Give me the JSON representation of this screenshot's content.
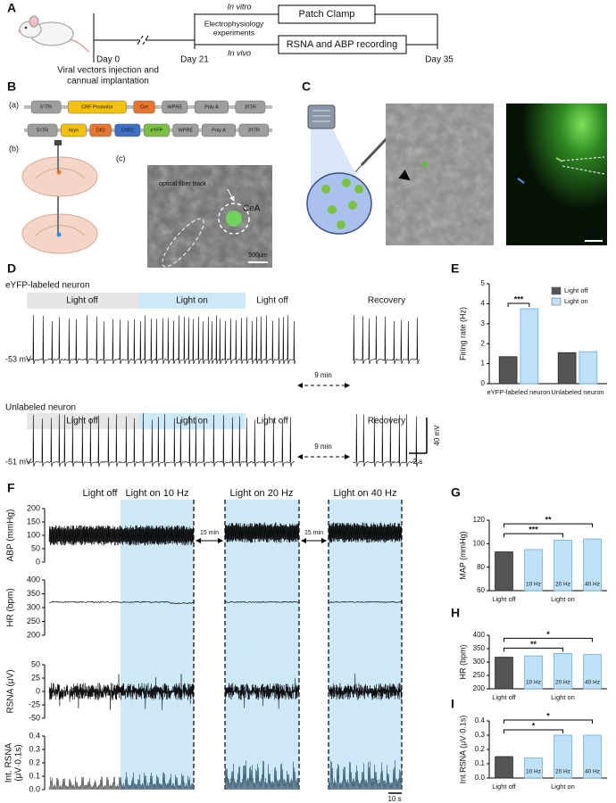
{
  "figure": {
    "panel_labels": [
      "A",
      "B",
      "C",
      "D",
      "E",
      "F",
      "G",
      "H",
      "I"
    ],
    "panel_a": {
      "day0": "Day 0",
      "day0_note": [
        "Viral vectors injection and",
        "cannual implantation"
      ],
      "day21": "Day 21",
      "day35": "Day 35",
      "in_vitro": "In vitro",
      "in_vivo": "In vivo",
      "experiments": [
        "Electrophysiology",
        "experiments"
      ],
      "patch": "Patch Clamp",
      "rsna": "RSNA and ABP recording"
    },
    "panel_b": {
      "sub_a": "(a)",
      "sub_b": "(b)",
      "sub_c": "(c)",
      "construct_1": [
        {
          "label": "5'ITR",
          "color": "#9e9e9e"
        },
        {
          "label": "CRF Promotor",
          "color": "#f4c20d"
        },
        {
          "label": "Cre",
          "color": "#e8732a"
        },
        {
          "label": "WPRE",
          "color": "#9e9e9e"
        },
        {
          "label": "Poly A",
          "color": "#9e9e9e"
        },
        {
          "label": "3'ITR",
          "color": "#9e9e9e"
        }
      ],
      "construct_2": [
        {
          "label": "5'ITR",
          "color": "#9e9e9e"
        },
        {
          "label": "hsyn",
          "color": "#f4c20d"
        },
        {
          "label": "DIO",
          "color": "#e8732a"
        },
        {
          "label": "ChR2",
          "color": "#3d6fc6"
        },
        {
          "label": "eYFP",
          "color": "#7cc242"
        },
        {
          "label": "WPRE",
          "color": "#9e9e9e"
        },
        {
          "label": "Poly A",
          "color": "#9e9e9e"
        },
        {
          "label": "3'ITR",
          "color": "#9e9e9e"
        }
      ],
      "fiber": "optical fiber track",
      "region": "CeA",
      "scale": "500μm"
    },
    "panel_c": {
      "scale": "20μm"
    },
    "panel_d": {
      "neurons": [
        {
          "name": "eYFP-labeled neuron",
          "potential": "-53 mV"
        },
        {
          "name": "Unlabeled neuron",
          "potential": "-51 mV"
        }
      ],
      "phases": [
        "Light off",
        "Light on",
        "Light off",
        "Recovery"
      ],
      "gap": "9 min",
      "scale_v": "40 mV",
      "scale_t": "2 s"
    },
    "panel_f": {
      "headers": [
        "Light off",
        "Light on 10 Hz",
        "Light on 20 Hz",
        "Light on 40 Hz"
      ],
      "gaps": [
        "15 min",
        "15 min"
      ],
      "scale_t": "10 s",
      "tracks": [
        {
          "label": [
            "ABP (mmHg)"
          ],
          "ylim": [
            0,
            200
          ],
          "yticks": [
            0,
            50,
            100,
            150,
            200
          ]
        },
        {
          "label": [
            "HR (bpm)"
          ],
          "ylim": [
            200,
            400
          ],
          "yticks": [
            200,
            250,
            300,
            350,
            400
          ]
        },
        {
          "label": [
            "RSNA (μV)"
          ],
          "ylim": [
            -50,
            50
          ],
          "yticks": [
            -50,
            -25,
            0,
            25,
            50
          ]
        },
        {
          "label": [
            "Int. RSNA",
            "(μV·0.1s)"
          ],
          "ylim": [
            0,
            0.4
          ],
          "yticks": [
            {
              "value": 0,
              "label": "0.0"
            },
            0.1,
            0.2,
            0.3,
            0.4
          ]
        }
      ]
    }
  },
  "chart_data": [
    {
      "type": "bar",
      "ylabel": "Firing rate (Hz)",
      "categories": [
        "eYFP-labeled neuron",
        "Unlabeled neuron"
      ],
      "series": [
        {
          "name": "Light off",
          "color": "#555555",
          "values": [
            1.35,
            1.55
          ]
        },
        {
          "name": "Light on",
          "color": "#bfe1f8",
          "values": [
            3.75,
            1.6
          ]
        }
      ],
      "ylim": [
        0,
        5
      ],
      "yticks": [
        0,
        1,
        2,
        3,
        4,
        5
      ],
      "legend": "upper right",
      "annotations": [
        {
          "text": "***",
          "category": "eYFP-labeled neuron"
        }
      ]
    },
    {
      "type": "bar",
      "ylabel": "MAP (mmHg)",
      "categories": [
        "Light off",
        "10 Hz",
        "20 Hz",
        "40 Hz"
      ],
      "group_label": "Light on",
      "colors": [
        "#555555",
        "#bfe1f8",
        "#bfe1f8",
        "#bfe1f8"
      ],
      "values": [
        93,
        95,
        103,
        104
      ],
      "ylim": [
        60,
        120
      ],
      "yticks": [
        60,
        80,
        100,
        120
      ],
      "annotations": [
        {
          "text": "***",
          "from": "Light off",
          "to": "20 Hz"
        },
        {
          "text": "**",
          "from": "Light off",
          "to": "40 Hz"
        }
      ]
    },
    {
      "type": "bar",
      "ylabel": "HR (bpm)",
      "categories": [
        "Light off",
        "10 Hz",
        "20 Hz",
        "40 Hz"
      ],
      "group_label": "Light on",
      "colors": [
        "#555555",
        "#bfe1f8",
        "#bfe1f8",
        "#bfe1f8"
      ],
      "values": [
        318,
        323,
        332,
        328
      ],
      "ylim": [
        200,
        400
      ],
      "yticks": [
        200,
        250,
        300,
        350,
        400
      ],
      "annotations": [
        {
          "text": "**",
          "from": "Light off",
          "to": "20 Hz"
        },
        {
          "text": "*",
          "from": "Light off",
          "to": "40 Hz"
        }
      ]
    },
    {
      "type": "bar",
      "ylabel": "Int.RSNA (μV·0.1s)",
      "categories": [
        "Light off",
        "10 Hz",
        "20 Hz",
        "40 Hz"
      ],
      "group_label": "Light on",
      "colors": [
        "#555555",
        "#bfe1f8",
        "#bfe1f8",
        "#bfe1f8"
      ],
      "values": [
        0.15,
        0.14,
        0.3,
        0.3
      ],
      "ylim": [
        0,
        0.4
      ],
      "yticks": [
        {
          "value": 0,
          "label": "0.0"
        },
        0.1,
        0.2,
        0.3,
        0.4
      ],
      "annotations": [
        {
          "text": "*",
          "from": "Light off",
          "to": "20 Hz"
        },
        {
          "text": "*",
          "from": "Light off",
          "to": "40 Hz"
        }
      ]
    }
  ]
}
